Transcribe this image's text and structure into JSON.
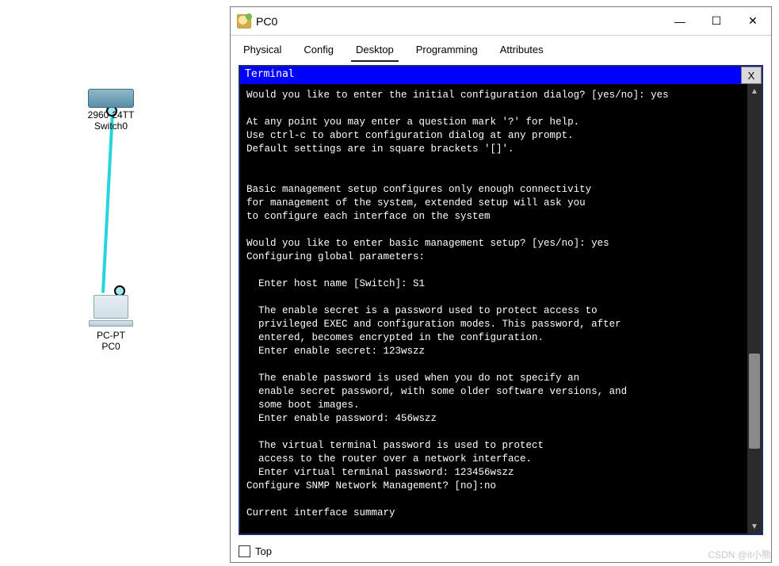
{
  "topology": {
    "switch": {
      "line1": "2960-24TT",
      "line2": "Switch0"
    },
    "pc": {
      "line1": "PC-PT",
      "line2": "PC0"
    },
    "link_color": "#26d4df"
  },
  "window": {
    "title": "PC0",
    "tabs": [
      {
        "label": "Physical",
        "active": false
      },
      {
        "label": "Config",
        "active": false
      },
      {
        "label": "Desktop",
        "active": true
      },
      {
        "label": "Programming",
        "active": false
      },
      {
        "label": "Attributes",
        "active": false
      }
    ],
    "terminal": {
      "header": "Terminal",
      "close_label": "X",
      "lines": [
        "Would you like to enter the initial configuration dialog? [yes/no]: yes",
        "",
        "At any point you may enter a question mark '?' for help.",
        "Use ctrl-c to abort configuration dialog at any prompt.",
        "Default settings are in square brackets '[]'.",
        "",
        "",
        "Basic management setup configures only enough connectivity",
        "for management of the system, extended setup will ask you",
        "to configure each interface on the system",
        "",
        "Would you like to enter basic management setup? [yes/no]: yes",
        "Configuring global parameters:",
        "",
        "  Enter host name [Switch]: S1",
        "",
        "  The enable secret is a password used to protect access to",
        "  privileged EXEC and configuration modes. This password, after",
        "  entered, becomes encrypted in the configuration.",
        "  Enter enable secret: 123wszz",
        "",
        "  The enable password is used when you do not specify an",
        "  enable secret password, with some older software versions, and",
        "  some boot images.",
        "  Enter enable password: 456wszz",
        "",
        "  The virtual terminal password is used to protect",
        "  access to the router over a network interface.",
        "  Enter virtual terminal password: 123456wszz",
        "Configure SNMP Network Management? [no]:no",
        "",
        "Current interface summary"
      ]
    },
    "bottom": {
      "top_label": "Top",
      "top_checked": false
    }
  },
  "watermark": "CSDN @it小熊",
  "colors": {
    "terminal_bg": "#000000",
    "terminal_fg": "#ffffff",
    "header_bg": "#0000ff",
    "header_fg": "#ffffff",
    "window_border": "#7a7a7a",
    "panel_border": "#1a2a6d"
  }
}
